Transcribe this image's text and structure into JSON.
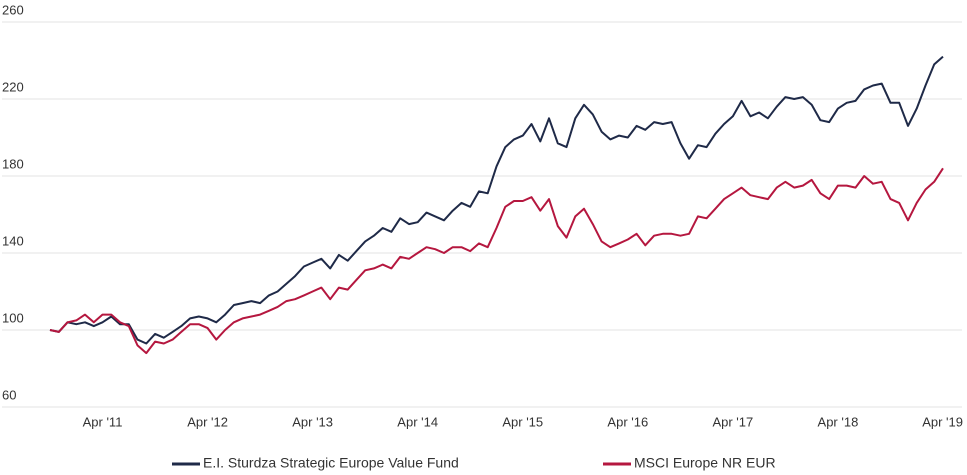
{
  "chart_data": {
    "type": "line",
    "categories": [
      null,
      null,
      null,
      null,
      null,
      null,
      "Apr '11",
      null,
      null,
      null,
      null,
      null,
      null,
      null,
      null,
      null,
      null,
      null,
      "Apr '12",
      null,
      null,
      null,
      null,
      null,
      null,
      null,
      null,
      null,
      null,
      null,
      "Apr '13",
      null,
      null,
      null,
      null,
      null,
      null,
      null,
      null,
      null,
      null,
      null,
      "Apr '14",
      null,
      null,
      null,
      null,
      null,
      null,
      null,
      null,
      null,
      null,
      null,
      "Apr '15",
      null,
      null,
      null,
      null,
      null,
      null,
      null,
      null,
      null,
      null,
      null,
      "Apr '16",
      null,
      null,
      null,
      null,
      null,
      null,
      null,
      null,
      null,
      null,
      null,
      "Apr '17",
      null,
      null,
      null,
      null,
      null,
      null,
      null,
      null,
      null,
      null,
      null,
      "Apr '18",
      null,
      null,
      null,
      null,
      null,
      null,
      null,
      null,
      null,
      null,
      null,
      "Apr '19"
    ],
    "series": [
      {
        "name": "E.I. Sturdza Strategic Europe Value Fund",
        "color": "#1f2a48",
        "values": [
          100,
          99,
          104,
          103,
          104,
          102,
          104,
          107,
          103,
          103,
          95,
          93,
          98,
          96,
          99,
          102,
          106,
          107,
          106,
          104,
          108,
          113,
          114,
          115,
          114,
          118,
          120,
          124,
          128,
          133,
          135,
          137,
          132,
          139,
          136,
          141,
          146,
          149,
          153,
          151,
          158,
          155,
          156,
          161,
          159,
          157,
          162,
          166,
          164,
          172,
          171,
          185,
          195,
          199,
          201,
          207,
          198,
          210,
          197,
          195,
          210,
          217,
          212,
          203,
          199,
          201,
          200,
          206,
          204,
          208,
          207,
          208,
          197,
          189,
          196,
          195,
          202,
          207,
          211,
          219,
          211,
          213,
          210,
          216,
          221,
          220,
          221,
          217,
          209,
          208,
          215,
          218,
          219,
          225,
          227,
          228,
          218,
          218,
          206,
          215,
          227,
          238,
          242
        ]
      },
      {
        "name": "MSCI Europe NR EUR",
        "color": "#b5173f",
        "values": [
          100,
          99,
          104,
          105,
          108,
          104,
          108,
          108,
          104,
          102,
          92,
          88,
          94,
          93,
          95,
          99,
          103,
          103,
          101,
          95,
          100,
          104,
          106,
          107,
          108,
          110,
          112,
          115,
          116,
          118,
          120,
          122,
          116,
          122,
          121,
          126,
          131,
          132,
          134,
          132,
          138,
          137,
          140,
          143,
          142,
          140,
          143,
          143,
          141,
          145,
          143,
          153,
          164,
          167,
          167,
          169,
          162,
          168,
          154,
          148,
          159,
          163,
          155,
          146,
          143,
          145,
          147,
          150,
          144,
          149,
          150,
          150,
          149,
          150,
          159,
          158,
          163,
          168,
          171,
          174,
          170,
          169,
          168,
          174,
          177,
          174,
          175,
          178,
          171,
          168,
          175,
          175,
          174,
          180,
          176,
          177,
          168,
          166,
          157,
          166,
          173,
          177,
          184
        ]
      }
    ],
    "ylim": [
      60,
      260
    ],
    "yticks": [
      60,
      100,
      140,
      180,
      220,
      260
    ],
    "grid": true,
    "legend": "bottom"
  }
}
